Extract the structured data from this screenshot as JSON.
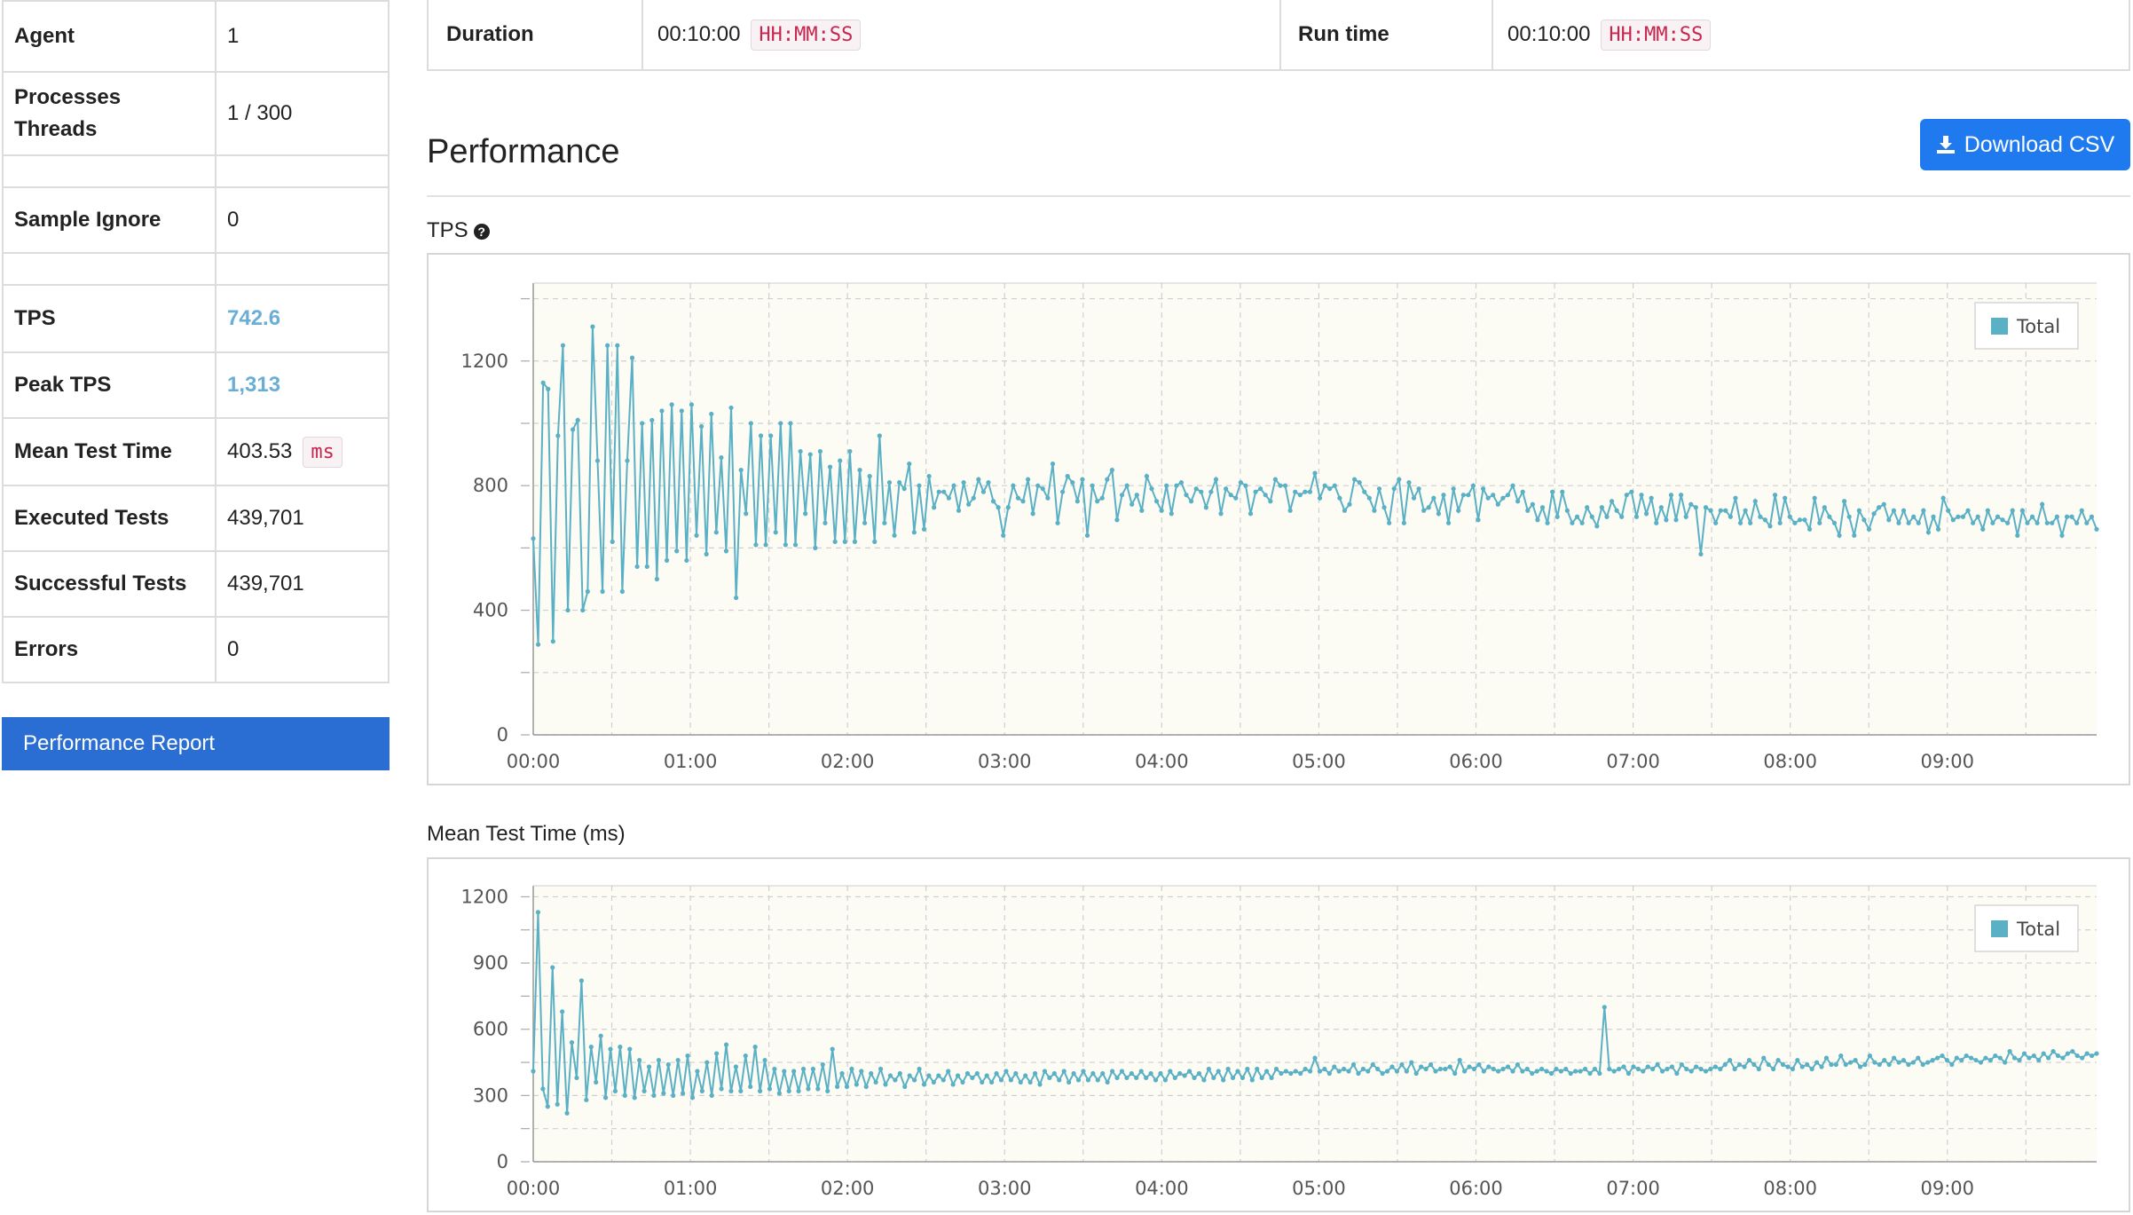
{
  "stats": [
    {
      "label": "Agent",
      "value": "1"
    },
    {
      "label": "Processes\nThreads",
      "value": "1 / 300"
    },
    {
      "label": "",
      "value": ""
    },
    {
      "label": "Sample Ignore",
      "value": "0"
    },
    {
      "label": "",
      "value": ""
    },
    {
      "label": "TPS",
      "value": "742.6",
      "style": "blue"
    },
    {
      "label": "Peak TPS",
      "value": "1,313",
      "style": "blue"
    },
    {
      "label": "Mean Test Time",
      "value": "403.53",
      "unit": "ms"
    },
    {
      "label": "Executed Tests",
      "value": "439,701"
    },
    {
      "label": "Successful Tests",
      "value": "439,701"
    },
    {
      "label": "Errors",
      "value": "0"
    }
  ],
  "report_button": "Performance Report",
  "duration": {
    "label": "Duration",
    "value": "00:10:00",
    "format": "HH:MM:SS"
  },
  "runtime": {
    "label": "Run time",
    "value": "00:10:00",
    "format": "HH:MM:SS"
  },
  "section_title": "Performance",
  "download_button": "Download CSV",
  "colors": {
    "series": "#5ab0c4",
    "plot_bg": "#fcfbf4",
    "button": "#1f7af0",
    "report_button": "#2a6ed3"
  },
  "chart_data": [
    {
      "type": "line",
      "title": "TPS",
      "legend": [
        "Total"
      ],
      "legend_position": "top-right",
      "grid": true,
      "xlim": [
        0,
        597
      ],
      "ylim": [
        0,
        1450
      ],
      "yticks": [
        0,
        400,
        800,
        1200
      ],
      "xticks": [
        "00:00",
        "01:00",
        "02:00",
        "03:00",
        "04:00",
        "05:00",
        "06:00",
        "07:00",
        "08:00",
        "09:00"
      ],
      "series": [
        {
          "name": "Total",
          "values": [
            630,
            290,
            1130,
            1110,
            300,
            960,
            1250,
            400,
            980,
            1010,
            400,
            460,
            1310,
            880,
            460,
            1250,
            620,
            1250,
            460,
            880,
            1210,
            540,
            1000,
            540,
            1010,
            500,
            1040,
            560,
            1060,
            590,
            1040,
            560,
            1060,
            640,
            990,
            580,
            1030,
            650,
            890,
            590,
            1050,
            440,
            850,
            710,
            1000,
            610,
            960,
            610,
            960,
            650,
            1000,
            610,
            1000,
            610,
            910,
            710,
            900,
            600,
            910,
            680,
            860,
            620,
            880,
            620,
            910,
            620,
            850,
            680,
            830,
            620,
            960,
            680,
            810,
            640,
            810,
            790,
            870,
            650,
            800,
            660,
            830,
            730,
            780,
            780,
            760,
            800,
            720,
            810,
            740,
            760,
            820,
            780,
            810,
            750,
            730,
            640,
            730,
            800,
            760,
            750,
            820,
            710,
            800,
            790,
            760,
            870,
            680,
            780,
            830,
            810,
            750,
            820,
            640,
            800,
            750,
            760,
            820,
            850,
            690,
            770,
            800,
            740,
            770,
            720,
            830,
            790,
            750,
            720,
            800,
            710,
            800,
            810,
            770,
            750,
            790,
            780,
            730,
            780,
            820,
            710,
            790,
            770,
            760,
            810,
            800,
            710,
            780,
            790,
            770,
            750,
            820,
            800,
            800,
            720,
            780,
            770,
            780,
            780,
            840,
            760,
            800,
            790,
            800,
            760,
            720,
            740,
            820,
            810,
            780,
            760,
            720,
            790,
            730,
            680,
            790,
            820,
            680,
            810,
            760,
            790,
            720,
            730,
            760,
            710,
            770,
            680,
            790,
            720,
            770,
            770,
            800,
            690,
            790,
            760,
            770,
            740,
            760,
            770,
            800,
            750,
            780,
            720,
            740,
            690,
            730,
            680,
            780,
            700,
            780,
            720,
            680,
            700,
            680,
            730,
            700,
            670,
            730,
            700,
            750,
            720,
            700,
            770,
            780,
            700,
            770,
            710,
            760,
            680,
            730,
            690,
            770,
            690,
            770,
            700,
            740,
            730,
            580,
            730,
            720,
            680,
            720,
            720,
            700,
            760,
            680,
            720,
            680,
            750,
            700,
            690,
            670,
            770,
            680,
            760,
            700,
            680,
            690,
            690,
            660,
            760,
            680,
            730,
            700,
            680,
            640,
            750,
            700,
            640,
            720,
            690,
            660,
            710,
            730,
            740,
            690,
            720,
            680,
            720,
            680,
            700,
            680,
            720,
            650,
            700,
            660,
            760,
            720,
            690,
            700,
            700,
            720,
            680,
            700,
            660,
            720,
            680,
            700,
            690,
            680,
            720,
            640,
            720,
            680,
            700,
            680,
            740,
            680,
            680,
            700,
            640,
            700,
            700,
            680,
            720,
            680,
            700,
            660
          ]
        }
      ]
    },
    {
      "type": "line",
      "title": "Mean Test Time (ms)",
      "legend": [
        "Total"
      ],
      "legend_position": "top-right",
      "grid": true,
      "xlim": [
        0,
        597
      ],
      "ylim": [
        0,
        1250
      ],
      "yticks": [
        0,
        300,
        600,
        900,
        1200
      ],
      "xticks": [
        "00:00",
        "01:00",
        "02:00",
        "03:00",
        "04:00",
        "05:00",
        "06:00",
        "07:00",
        "08:00",
        "09:00"
      ],
      "series": [
        {
          "name": "Total",
          "values": [
            410,
            1130,
            330,
            250,
            880,
            260,
            680,
            220,
            540,
            380,
            820,
            280,
            520,
            360,
            570,
            290,
            510,
            320,
            520,
            300,
            510,
            290,
            460,
            320,
            430,
            300,
            460,
            310,
            440,
            300,
            460,
            310,
            480,
            290,
            410,
            320,
            450,
            300,
            490,
            330,
            530,
            320,
            430,
            320,
            480,
            340,
            520,
            320,
            460,
            330,
            420,
            310,
            410,
            320,
            410,
            320,
            420,
            330,
            420,
            330,
            440,
            320,
            510,
            340,
            400,
            340,
            420,
            350,
            410,
            340,
            400,
            360,
            420,
            350,
            390,
            370,
            400,
            340,
            390,
            370,
            420,
            350,
            390,
            360,
            390,
            370,
            410,
            350,
            390,
            360,
            400,
            380,
            400,
            360,
            390,
            360,
            400,
            370,
            410,
            370,
            400,
            360,
            390,
            360,
            400,
            350,
            410,
            380,
            400,
            370,
            410,
            360,
            400,
            370,
            410,
            370,
            400,
            370,
            400,
            360,
            410,
            380,
            410,
            380,
            400,
            380,
            410,
            380,
            400,
            370,
            400,
            370,
            410,
            380,
            400,
            390,
            410,
            380,
            400,
            370,
            420,
            380,
            410,
            370,
            420,
            380,
            410,
            380,
            420,
            370,
            420,
            380,
            410,
            380,
            420,
            400,
            410,
            400,
            410,
            400,
            420,
            410,
            470,
            410,
            420,
            400,
            430,
            410,
            420,
            410,
            440,
            400,
            420,
            410,
            440,
            420,
            400,
            410,
            430,
            410,
            440,
            410,
            450,
            400,
            430,
            420,
            440,
            410,
            420,
            420,
            430,
            400,
            460,
            410,
            430,
            420,
            440,
            410,
            430,
            420,
            410,
            420,
            430,
            410,
            440,
            410,
            420,
            400,
            410,
            420,
            410,
            400,
            420,
            410,
            420,
            400,
            410,
            410,
            420,
            400,
            420,
            400,
            700,
            420,
            410,
            420,
            430,
            400,
            430,
            420,
            410,
            430,
            420,
            440,
            410,
            420,
            430,
            400,
            440,
            420,
            410,
            430,
            420,
            410,
            420,
            430,
            420,
            440,
            460,
            420,
            440,
            430,
            460,
            440,
            420,
            470,
            440,
            420,
            460,
            440,
            430,
            420,
            460,
            430,
            440,
            420,
            450,
            430,
            470,
            440,
            440,
            480,
            440,
            450,
            460,
            430,
            440,
            480,
            450,
            440,
            460,
            440,
            470,
            450,
            460,
            440,
            450,
            470,
            440,
            450,
            460,
            470,
            480,
            460,
            440,
            470,
            460,
            480,
            470,
            460,
            450,
            470,
            460,
            480,
            470,
            450,
            500,
            470,
            460,
            490,
            470,
            480,
            460,
            490,
            470,
            500,
            480,
            470,
            490,
            500,
            480,
            470,
            490,
            480,
            490
          ]
        }
      ]
    }
  ]
}
